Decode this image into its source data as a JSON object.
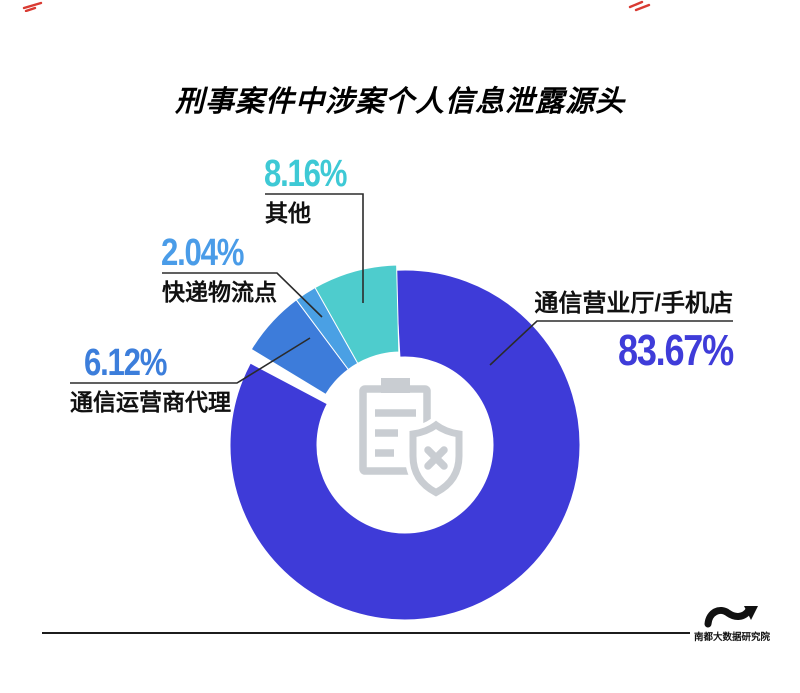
{
  "title": "刑事案件中涉案个人信息泄露源头",
  "chart_data": {
    "type": "pie",
    "subtype": "donut",
    "title": "刑事案件中涉案个人信息泄露源头",
    "unit": "%",
    "legend_position": "callout-labels",
    "series": [
      {
        "label": "通信营业厅/手机店",
        "value": 83.67,
        "color": "#3e3bd8",
        "exploded": true
      },
      {
        "label": "通信运营商代理",
        "value": 6.12,
        "color": "#3d7cda",
        "exploded": false
      },
      {
        "label": "快递物流点",
        "value": 2.04,
        "color": "#4aa0e4",
        "exploded": false
      },
      {
        "label": "其他",
        "value": 8.16,
        "color": "#4ecccd",
        "exploded": false
      }
    ]
  },
  "labels": {
    "other": {
      "pct": "8.16%",
      "name": "其他",
      "color": "#3ec9d5"
    },
    "express": {
      "pct": "2.04%",
      "name": "快递物流点",
      "color": "#4a9ce8"
    },
    "agent": {
      "pct": "6.12%",
      "name": "通信运营商代理",
      "color": "#3c7edb"
    },
    "main": {
      "pct": "83.67%",
      "name": "通信营业厅/手机店",
      "color": "#3f3cd9"
    }
  },
  "center_icon": {
    "name": "clipboard-shield-x",
    "color": "#c9cdd2"
  },
  "footer": {
    "source_label": "南都大数据研究院"
  },
  "decor": {
    "mark_color": "#d93a32",
    "line_color": "#2b2b2b"
  }
}
